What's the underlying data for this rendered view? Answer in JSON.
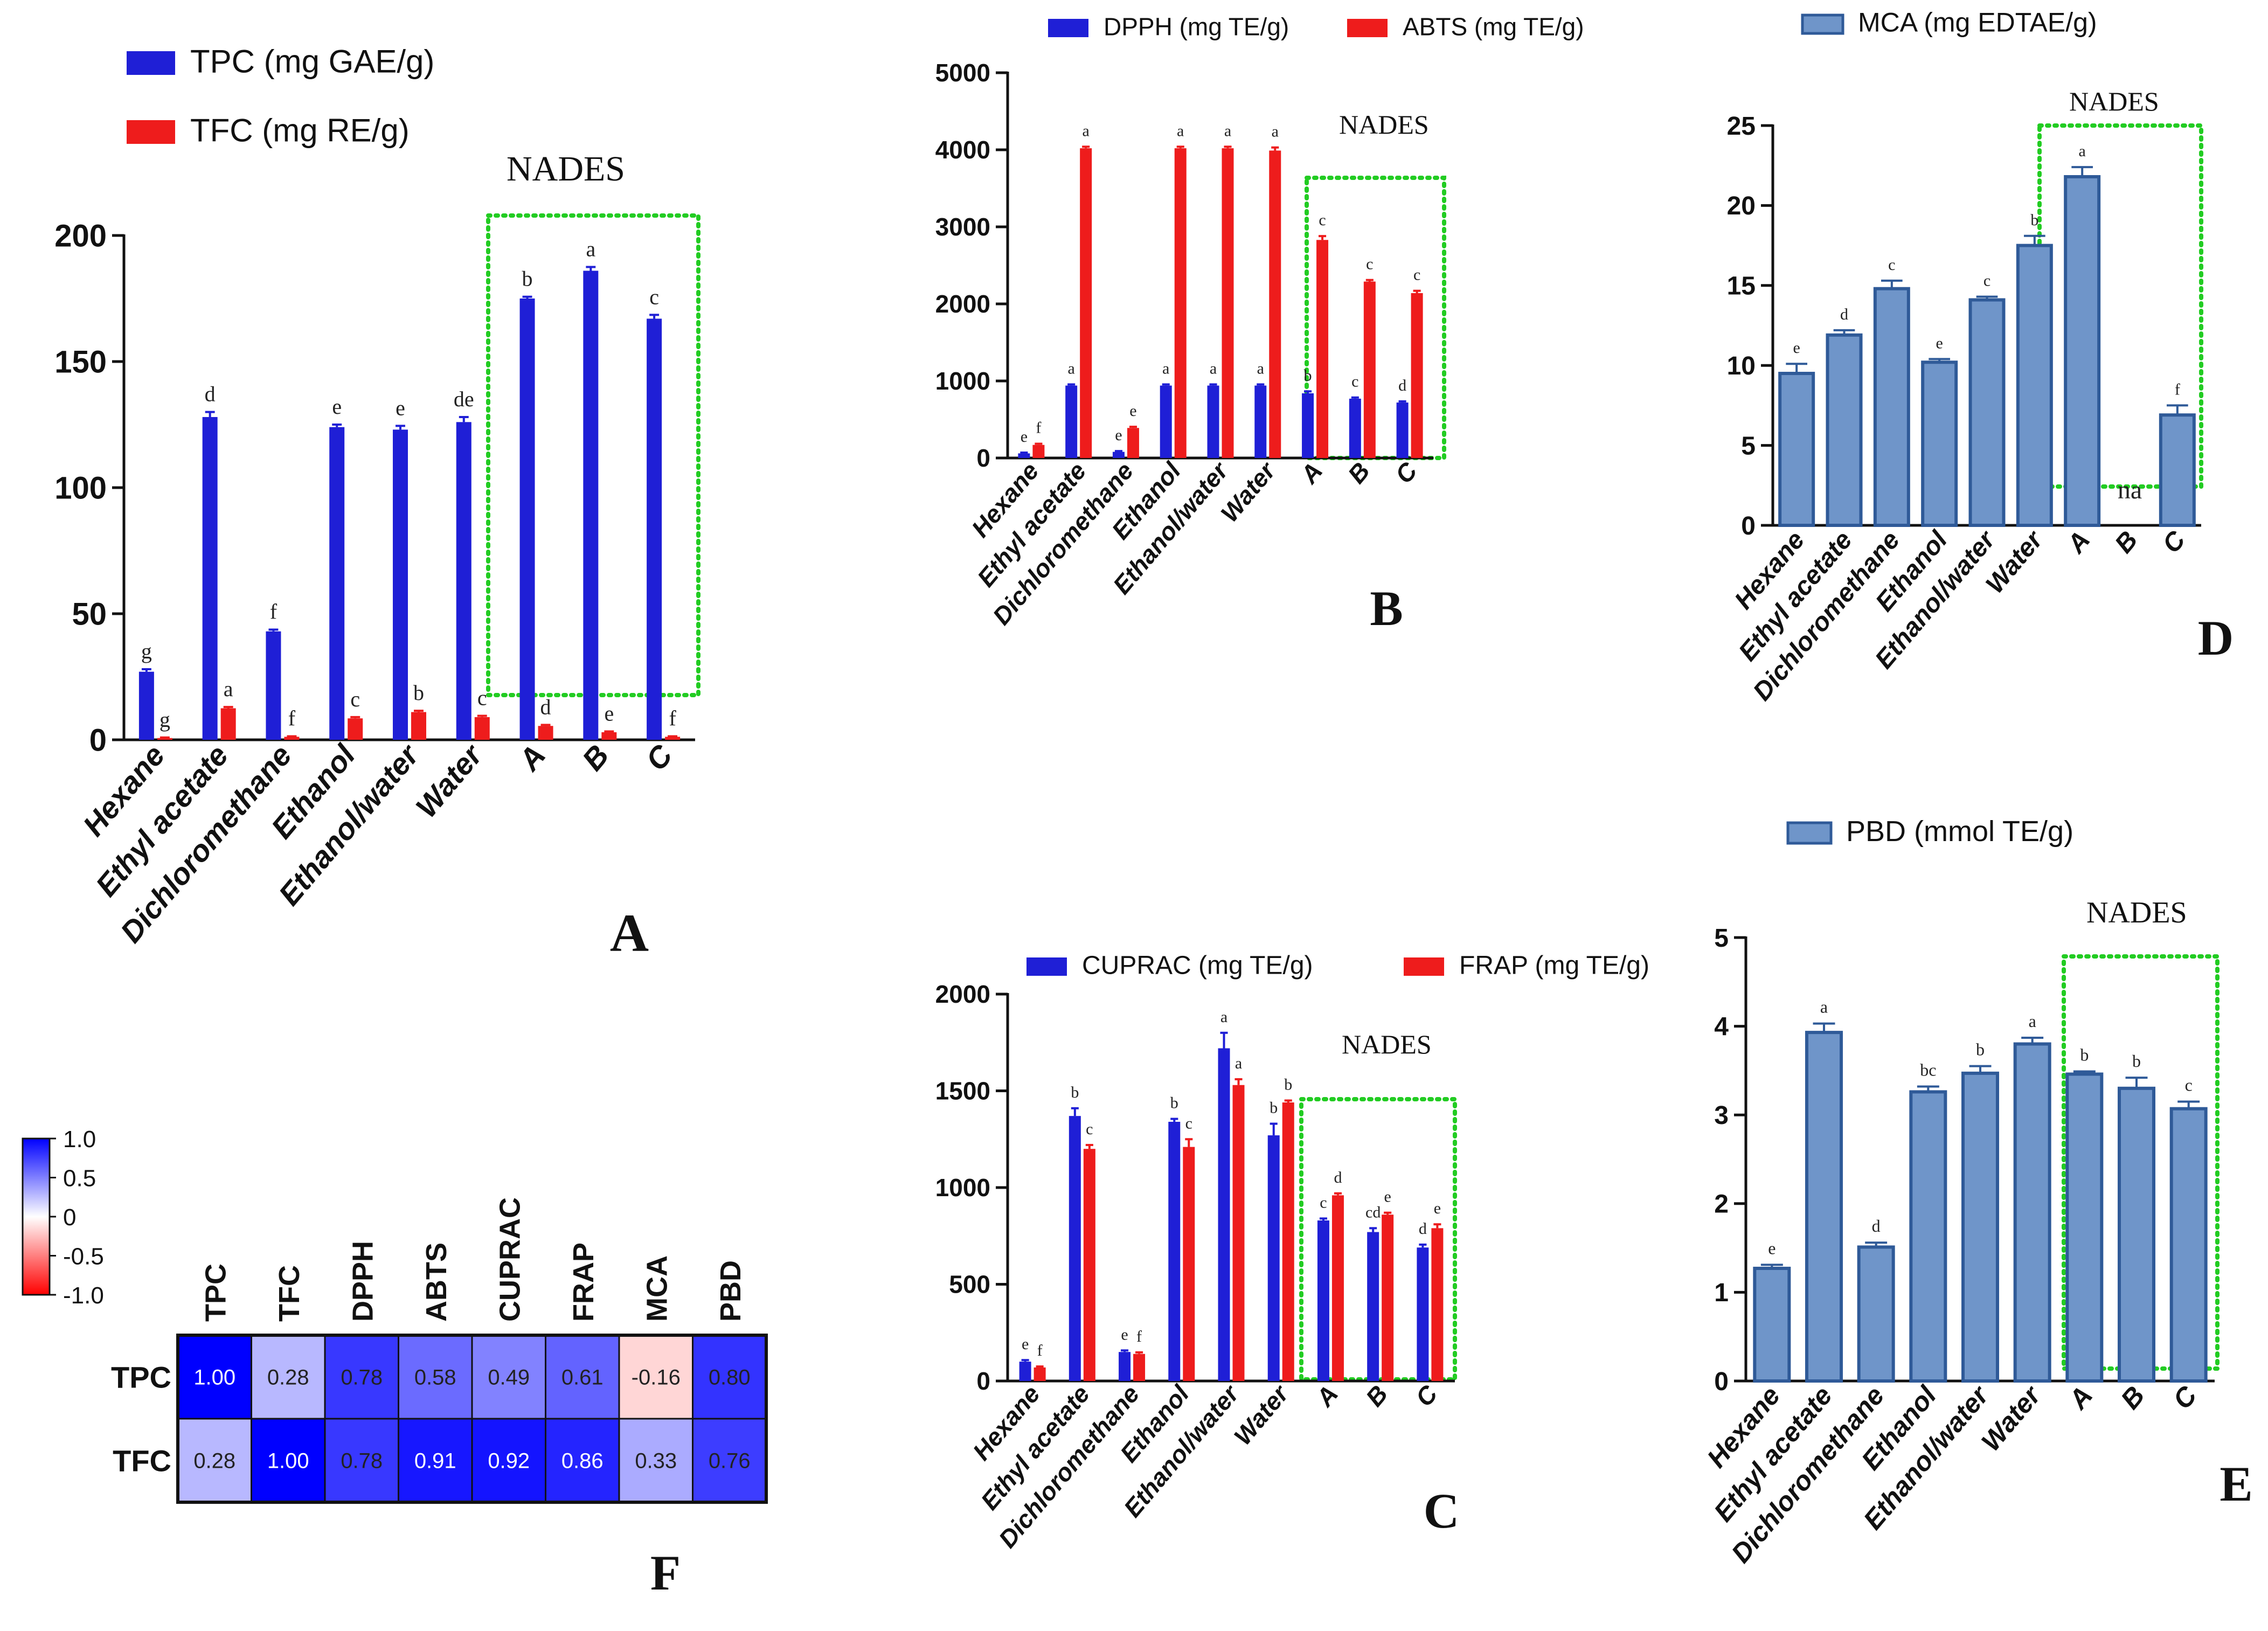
{
  "categories": [
    "Hexane",
    "Ethyl acetate",
    "Dichloromethane",
    "Ethanol",
    "Ethanol/water",
    "Water",
    "A",
    "B",
    "C"
  ],
  "nades_label": "NADES",
  "colors": {
    "blue": "#1f1fd6",
    "red": "#ee1c1c",
    "steel": "#6f95c9",
    "steel_edge": "#2f5a98",
    "green": "#22cc22"
  },
  "chart_data": [
    {
      "id": "A",
      "panel_label": "A",
      "type": "bar",
      "ylim": [
        0,
        200
      ],
      "yticks": [
        "0",
        "50",
        "100",
        "150",
        "200"
      ],
      "series": [
        {
          "name": "TPC (mg GAE/g)",
          "values": [
            27,
            128,
            43,
            124,
            123,
            126,
            175,
            186,
            167
          ],
          "err": [
            1,
            2,
            0.7,
            1,
            1.5,
            2,
            0.7,
            1.5,
            1.5
          ],
          "letters": [
            "g",
            "d",
            "f",
            "e",
            "e",
            "de",
            "b",
            "a",
            "c"
          ]
        },
        {
          "name": "TFC (mg RE/g)",
          "values": [
            0.7,
            12.5,
            1.2,
            8.5,
            11,
            9,
            5.5,
            3,
            1.2
          ],
          "err": [
            0.2,
            0.5,
            0.2,
            0.5,
            0.5,
            0.5,
            0.4,
            0.3,
            0.2
          ],
          "letters": [
            "g",
            "a",
            "f",
            "c",
            "b",
            "c",
            "d",
            "e",
            "f"
          ]
        }
      ]
    },
    {
      "id": "B",
      "panel_label": "B",
      "type": "bar",
      "ylim": [
        0,
        5000
      ],
      "yticks": [
        "0",
        "1000",
        "2000",
        "3000",
        "4000",
        "5000"
      ],
      "series": [
        {
          "name": "DPPH (mg TE/g)",
          "values": [
            60,
            940,
            80,
            940,
            940,
            940,
            840,
            770,
            720
          ],
          "err": [
            10,
            15,
            10,
            15,
            15,
            15,
            25,
            15,
            15
          ],
          "letters": [
            "e",
            "a",
            "e",
            "a",
            "a",
            "a",
            "b",
            "c",
            "d"
          ]
        },
        {
          "name": "ABTS  (mg TE/g)",
          "values": [
            170,
            4020,
            390,
            4020,
            4020,
            3990,
            2830,
            2290,
            2140
          ],
          "err": [
            15,
            20,
            15,
            20,
            20,
            40,
            50,
            20,
            30
          ],
          "letters": [
            "f",
            "a",
            "e",
            "a",
            "a",
            "a",
            "c",
            "c",
            "c"
          ]
        }
      ]
    },
    {
      "id": "C",
      "panel_label": "C",
      "type": "bar",
      "ylim": [
        0,
        2000
      ],
      "yticks": [
        "0",
        "500",
        "1000",
        "1500",
        "2000"
      ],
      "series": [
        {
          "name": "CUPRAC (mg TE/g)",
          "values": [
            100,
            1370,
            150,
            1340,
            1720,
            1270,
            830,
            770,
            690
          ],
          "err": [
            8,
            40,
            8,
            15,
            80,
            60,
            10,
            20,
            15
          ],
          "letters": [
            "e",
            "b",
            "e",
            "b",
            "a",
            "b",
            "c",
            "cd",
            "d"
          ]
        },
        {
          "name": "FRAP  (mg TE/g)",
          "values": [
            70,
            1200,
            140,
            1210,
            1530,
            1440,
            960,
            860,
            790
          ],
          "err": [
            5,
            20,
            8,
            40,
            30,
            10,
            10,
            10,
            20
          ],
          "letters": [
            "f",
            "c",
            "f",
            "c",
            "a",
            "b",
            "d",
            "e",
            "e"
          ]
        }
      ]
    },
    {
      "id": "D",
      "panel_label": "D",
      "type": "bar",
      "ylim": [
        0,
        25
      ],
      "yticks": [
        "0",
        "5",
        "10",
        "15",
        "20",
        "25"
      ],
      "series": [
        {
          "name": "MCA (mg EDTAE/g)",
          "values": [
            9.5,
            11.9,
            14.8,
            10.2,
            14.1,
            17.5,
            21.8,
            null,
            6.9
          ],
          "err": [
            0.6,
            0.3,
            0.5,
            0.2,
            0.2,
            0.6,
            0.6,
            0,
            0.6
          ],
          "letters": [
            "e",
            "d",
            "c",
            "e",
            "c",
            "b",
            "a",
            "na",
            "f"
          ]
        }
      ]
    },
    {
      "id": "E",
      "panel_label": "E",
      "type": "bar",
      "ylim": [
        0,
        5
      ],
      "yticks": [
        "0",
        "1",
        "2",
        "3",
        "4",
        "5"
      ],
      "series": [
        {
          "name": "PBD (mmol TE/g)",
          "values": [
            1.27,
            3.93,
            1.51,
            3.26,
            3.47,
            3.8,
            3.46,
            3.3,
            3.07
          ],
          "err": [
            0.04,
            0.1,
            0.05,
            0.06,
            0.08,
            0.07,
            0.03,
            0.12,
            0.08
          ],
          "letters": [
            "e",
            "a",
            "d",
            "bc",
            "b",
            "a",
            "b",
            "b",
            "c"
          ]
        }
      ]
    },
    {
      "id": "F",
      "panel_label": "F",
      "type": "heatmap",
      "columns": [
        "TPC",
        "TFC",
        "DPPH",
        "ABTS",
        "CUPRAC",
        "FRAP",
        "MCA",
        "PBD"
      ],
      "rows": [
        "TPC",
        "TFC"
      ],
      "values": [
        [
          1.0,
          0.28,
          0.78,
          0.58,
          0.49,
          0.61,
          -0.16,
          0.8
        ],
        [
          0.28,
          1.0,
          0.78,
          0.91,
          0.92,
          0.86,
          0.33,
          0.76
        ]
      ],
      "cell_labels": [
        [
          "1.00",
          "0.28",
          "0.78",
          "0.58",
          "0.49",
          "0.61",
          "-0.16",
          "0.80"
        ],
        [
          "0.28",
          "1.00",
          "0.78",
          "0.91",
          "0.92",
          "0.86",
          "0.33",
          "0.76"
        ]
      ],
      "colorbar_ticks": [
        "1.0",
        "0.5",
        "0",
        "-0.5",
        "-1.0"
      ],
      "vmin": -1,
      "vmax": 1
    }
  ]
}
